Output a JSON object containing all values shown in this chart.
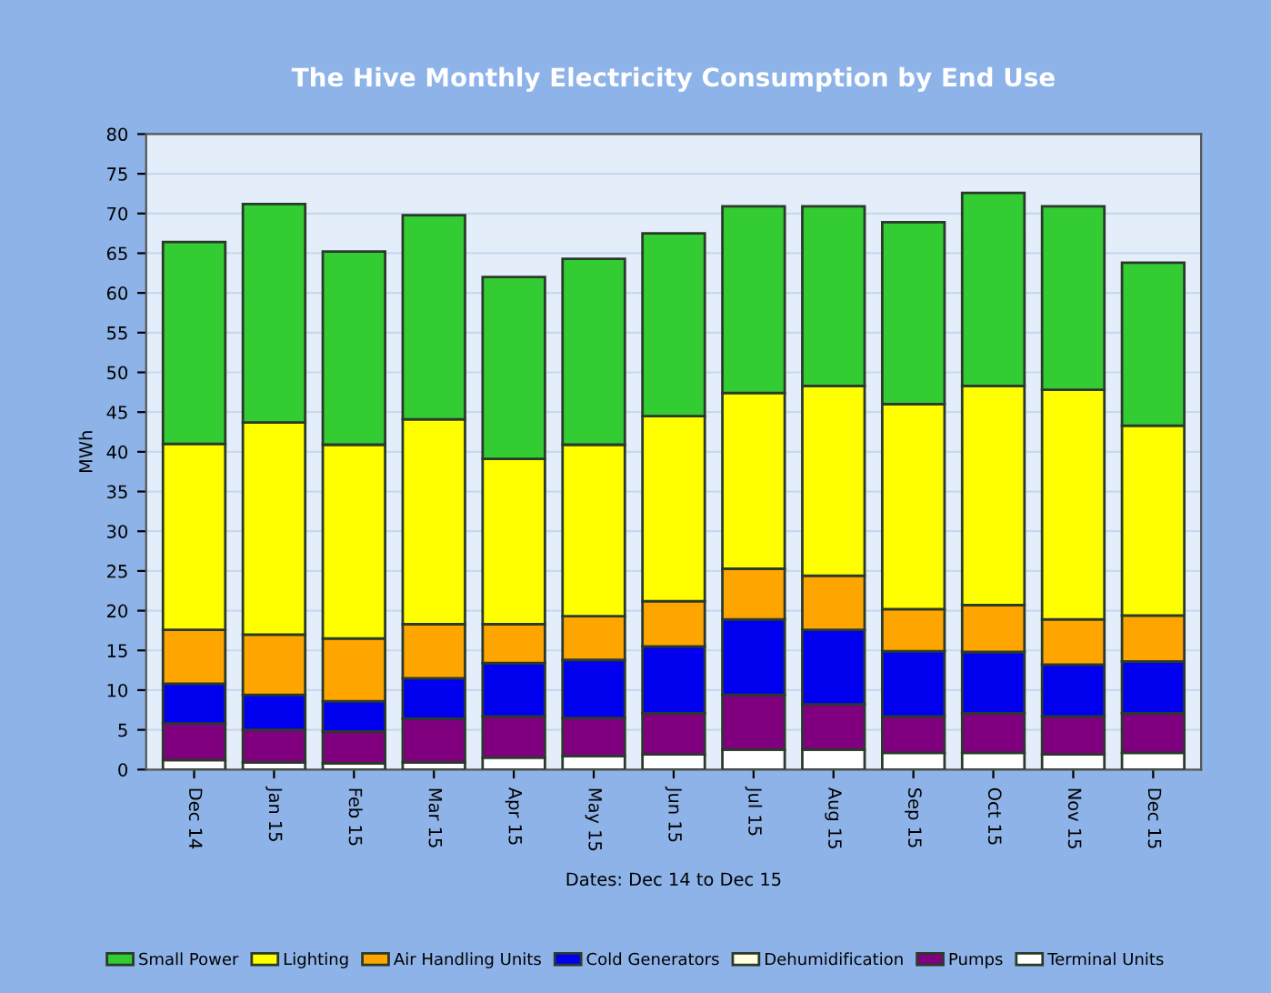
{
  "chart_data": {
    "type": "bar",
    "title": "The Hive Monthly Electricity Consumption by End Use",
    "xlabel": "Dates: Dec 14 to Dec 15",
    "ylabel": "MWh",
    "categories": [
      "Dec 14",
      "Jan 15",
      "Feb 15",
      "Mar 15",
      "Apr 15",
      "May 15",
      "Jun 15",
      "Jul 15",
      "Aug 15",
      "Sep 15",
      "Oct 15",
      "Nov 15",
      "Dec 15"
    ],
    "stacked": true,
    "ylim": [
      0,
      80
    ],
    "yticks": [
      0,
      5,
      10,
      15,
      20,
      25,
      30,
      35,
      40,
      45,
      50,
      55,
      60,
      65,
      70,
      75,
      80
    ],
    "grid": "y",
    "legend": "bottom",
    "series": [
      {
        "name": "Terminal Units",
        "color": "#ffffff",
        "values": [
          1.2,
          0.9,
          0.8,
          0.9,
          1.5,
          1.7,
          1.9,
          2.5,
          2.5,
          2.1,
          2.1,
          1.9,
          2.1
        ]
      },
      {
        "name": "Pumps",
        "color": "#800080",
        "values": [
          4.6,
          4.1,
          4.0,
          5.5,
          5.2,
          4.8,
          5.2,
          6.9,
          5.7,
          4.6,
          5.0,
          4.8,
          5.0
        ]
      },
      {
        "name": "Dehumidification",
        "color": "#ffffe0",
        "values": [
          null,
          null,
          null,
          null,
          null,
          null,
          null,
          null,
          null,
          null,
          null,
          null,
          null
        ]
      },
      {
        "name": "Cold Generators",
        "color": "#0000ee",
        "values": [
          5.0,
          4.4,
          3.8,
          5.1,
          6.7,
          7.3,
          8.4,
          9.5,
          9.4,
          8.2,
          7.7,
          6.5,
          6.5
        ]
      },
      {
        "name": "Air Handling Units",
        "color": "#ffa500",
        "values": [
          6.8,
          7.6,
          7.9,
          6.8,
          4.9,
          5.5,
          5.7,
          6.4,
          6.8,
          5.3,
          5.9,
          5.7,
          5.8
        ]
      },
      {
        "name": "Lighting",
        "color": "#ffff00",
        "values": [
          23.4,
          26.7,
          24.4,
          25.8,
          20.8,
          21.6,
          23.3,
          22.1,
          23.9,
          25.8,
          27.6,
          28.9,
          23.9
        ]
      },
      {
        "name": "Small Power",
        "color": "#33cc33",
        "values": [
          25.4,
          27.5,
          24.3,
          25.7,
          22.9,
          23.4,
          23.0,
          23.5,
          22.6,
          22.9,
          24.3,
          23.1,
          20.5
        ]
      }
    ]
  }
}
